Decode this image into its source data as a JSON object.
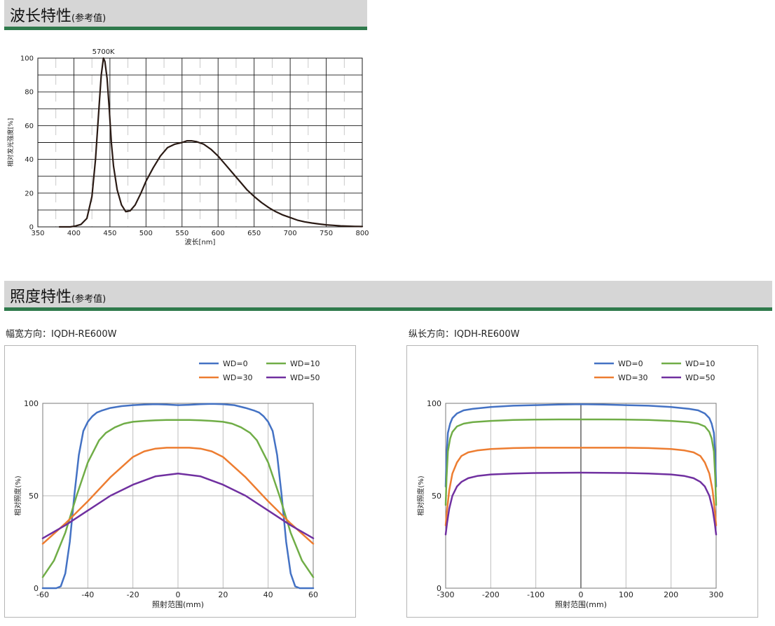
{
  "spectrum_section": {
    "title": "波长特性",
    "note": "(参考值)"
  },
  "illuminance_section": {
    "title": "照度特性",
    "note": "(参考值)"
  },
  "colors": {
    "header_bg": "#d6d6d6",
    "header_bar": "#2f7a4c",
    "spectrum_line": "#2a1a14",
    "wd0": "#4472c4",
    "wd10": "#70ad47",
    "wd30": "#ed7d31",
    "wd50": "#7030a0"
  },
  "chart_data": [
    {
      "id": "spectrum",
      "type": "line",
      "title": "",
      "annotation": "5700K",
      "xlabel": "波长[nm]",
      "ylabel": "相对发光强度[%]",
      "xlim": [
        350,
        800
      ],
      "ylim": [
        0,
        100
      ],
      "xticks": [
        350,
        400,
        450,
        500,
        550,
        600,
        650,
        700,
        750,
        800
      ],
      "yticks": [
        0,
        20,
        40,
        60,
        80,
        100
      ],
      "grid": true,
      "series": [
        {
          "x": [
            380,
            395,
            402,
            410,
            418,
            425,
            430,
            435,
            438,
            441,
            443,
            446,
            449,
            452,
            455,
            460,
            466,
            472,
            478,
            485,
            493,
            500,
            510,
            520,
            530,
            540,
            550,
            557,
            563,
            570,
            580,
            590,
            600,
            610,
            620,
            630,
            640,
            650,
            660,
            670,
            680,
            690,
            700,
            710,
            720,
            730,
            740,
            750,
            760,
            770,
            780,
            790,
            800
          ],
          "y": [
            0,
            0,
            0.5,
            1.5,
            5,
            18,
            40,
            72,
            90,
            100,
            98,
            88,
            70,
            50,
            36,
            22,
            13,
            9,
            9.5,
            13,
            20,
            27,
            35,
            42,
            47,
            49,
            50,
            51,
            51,
            50.5,
            49,
            46,
            42,
            37,
            32,
            27,
            22,
            18,
            14.5,
            11.5,
            9,
            7,
            5.5,
            4,
            3,
            2.3,
            1.7,
            1.2,
            0.9,
            0.6,
            0.4,
            0.3,
            0.2
          ]
        }
      ]
    },
    {
      "id": "width-direction",
      "type": "line",
      "title": "幅宽方向：IQDH-RE600W",
      "xlabel": "照射范围(mm)",
      "ylabel": "相对照度(%)",
      "xlim": [
        -60,
        60
      ],
      "ylim": [
        0,
        100
      ],
      "xticks": [
        -60,
        -40,
        -20,
        0,
        20,
        40,
        60
      ],
      "yticks": [
        0,
        50,
        100
      ],
      "grid": true,
      "legend": "top-right",
      "series": [
        {
          "name": "WD=0",
          "x": [
            -60,
            -54,
            -52,
            -50,
            -48,
            -46,
            -44,
            -42,
            -40,
            -38,
            -36,
            -34,
            -30,
            -25,
            -20,
            -15,
            -10,
            -5,
            0,
            5,
            10,
            15,
            20,
            25,
            30,
            34,
            36,
            38,
            40,
            42,
            44,
            46,
            48,
            50,
            52,
            54,
            60
          ],
          "y": [
            0,
            0,
            1,
            8,
            25,
            50,
            72,
            85,
            90,
            93,
            95,
            96,
            97.5,
            98.5,
            99,
            99.3,
            99.5,
            99.3,
            99,
            99.2,
            99.5,
            99.7,
            99.5,
            99,
            97.5,
            96,
            95,
            93,
            90,
            85,
            72,
            50,
            25,
            8,
            1,
            0,
            0
          ]
        },
        {
          "name": "WD=10",
          "x": [
            -60,
            -55,
            -50,
            -45,
            -40,
            -35,
            -32,
            -28,
            -24,
            -20,
            -15,
            -10,
            -5,
            0,
            5,
            10,
            15,
            20,
            24,
            28,
            32,
            35,
            40,
            45,
            50,
            55,
            60
          ],
          "y": [
            6,
            15,
            30,
            50,
            68,
            80,
            84,
            87,
            89,
            90,
            90.5,
            90.8,
            91,
            91,
            91,
            90.8,
            90.5,
            90,
            89,
            87,
            84,
            80,
            68,
            50,
            30,
            15,
            6
          ]
        },
        {
          "name": "WD=30",
          "x": [
            -60,
            -50,
            -40,
            -30,
            -20,
            -15,
            -10,
            -5,
            0,
            5,
            10,
            15,
            20,
            30,
            40,
            50,
            60
          ],
          "y": [
            24,
            35,
            47,
            60,
            71,
            74,
            75.5,
            76,
            76,
            76,
            75.5,
            74,
            71,
            60,
            47,
            35,
            24
          ]
        },
        {
          "name": "WD=50",
          "x": [
            -60,
            -50,
            -40,
            -30,
            -20,
            -10,
            0,
            10,
            20,
            30,
            40,
            50,
            60
          ],
          "y": [
            27,
            34,
            42,
            50,
            56,
            60.5,
            62,
            60.5,
            56,
            50,
            42,
            34,
            27
          ]
        }
      ]
    },
    {
      "id": "length-direction",
      "type": "line",
      "title": "纵长方向：IQDH-RE600W",
      "xlabel": "照射范围(mm)",
      "ylabel": "相对照度(%)",
      "xlim": [
        -300,
        300
      ],
      "ylim": [
        0,
        100
      ],
      "xticks": [
        -300,
        -200,
        -100,
        0,
        100,
        200,
        300
      ],
      "yticks": [
        0,
        50,
        100
      ],
      "grid": true,
      "legend": "top-right",
      "series": [
        {
          "name": "WD=0",
          "x": [
            -300,
            -298,
            -295,
            -290,
            -285,
            -275,
            -260,
            -240,
            -200,
            -150,
            -100,
            -50,
            0,
            50,
            100,
            150,
            200,
            240,
            260,
            275,
            285,
            290,
            295,
            298,
            300
          ],
          "y": [
            55,
            72,
            84,
            89,
            92,
            94.5,
            96.2,
            97,
            98,
            98.7,
            99,
            99.3,
            99.5,
            99.3,
            99,
            98.7,
            98,
            97,
            96.2,
            94.5,
            92,
            89,
            84,
            72,
            55
          ]
        },
        {
          "name": "WD=10",
          "x": [
            -300,
            -298,
            -295,
            -290,
            -285,
            -275,
            -260,
            -240,
            -200,
            -150,
            -100,
            -50,
            0,
            50,
            100,
            150,
            200,
            240,
            260,
            275,
            285,
            290,
            295,
            298,
            300
          ],
          "y": [
            45,
            60,
            74,
            81,
            84.5,
            87.5,
            89,
            89.8,
            90.5,
            91,
            91.2,
            91.3,
            91.3,
            91.3,
            91.2,
            91,
            90.5,
            89.8,
            89,
            87.5,
            84.5,
            81,
            74,
            60,
            45
          ]
        },
        {
          "name": "WD=30",
          "x": [
            -300,
            -297,
            -292,
            -285,
            -275,
            -265,
            -250,
            -230,
            -200,
            -150,
            -100,
            -50,
            0,
            50,
            100,
            150,
            200,
            230,
            250,
            265,
            275,
            285,
            292,
            297,
            300
          ],
          "y": [
            34,
            42,
            53,
            62,
            68,
            71.5,
            73.5,
            74.5,
            75.3,
            75.8,
            76,
            76,
            76,
            76,
            76,
            75.8,
            75.3,
            74.5,
            73.5,
            71.5,
            68,
            62,
            53,
            42,
            34
          ]
        },
        {
          "name": "WD=50",
          "x": [
            -300,
            -297,
            -292,
            -285,
            -275,
            -265,
            -250,
            -230,
            -200,
            -150,
            -100,
            -50,
            0,
            50,
            100,
            150,
            200,
            230,
            250,
            265,
            275,
            285,
            292,
            297,
            300
          ],
          "y": [
            29,
            35,
            43,
            50,
            55,
            57.5,
            59.5,
            60.7,
            61.5,
            62,
            62.3,
            62.4,
            62.5,
            62.4,
            62.3,
            62,
            61.5,
            60.7,
            59.5,
            57.5,
            55,
            50,
            43,
            35,
            29
          ]
        }
      ]
    }
  ]
}
